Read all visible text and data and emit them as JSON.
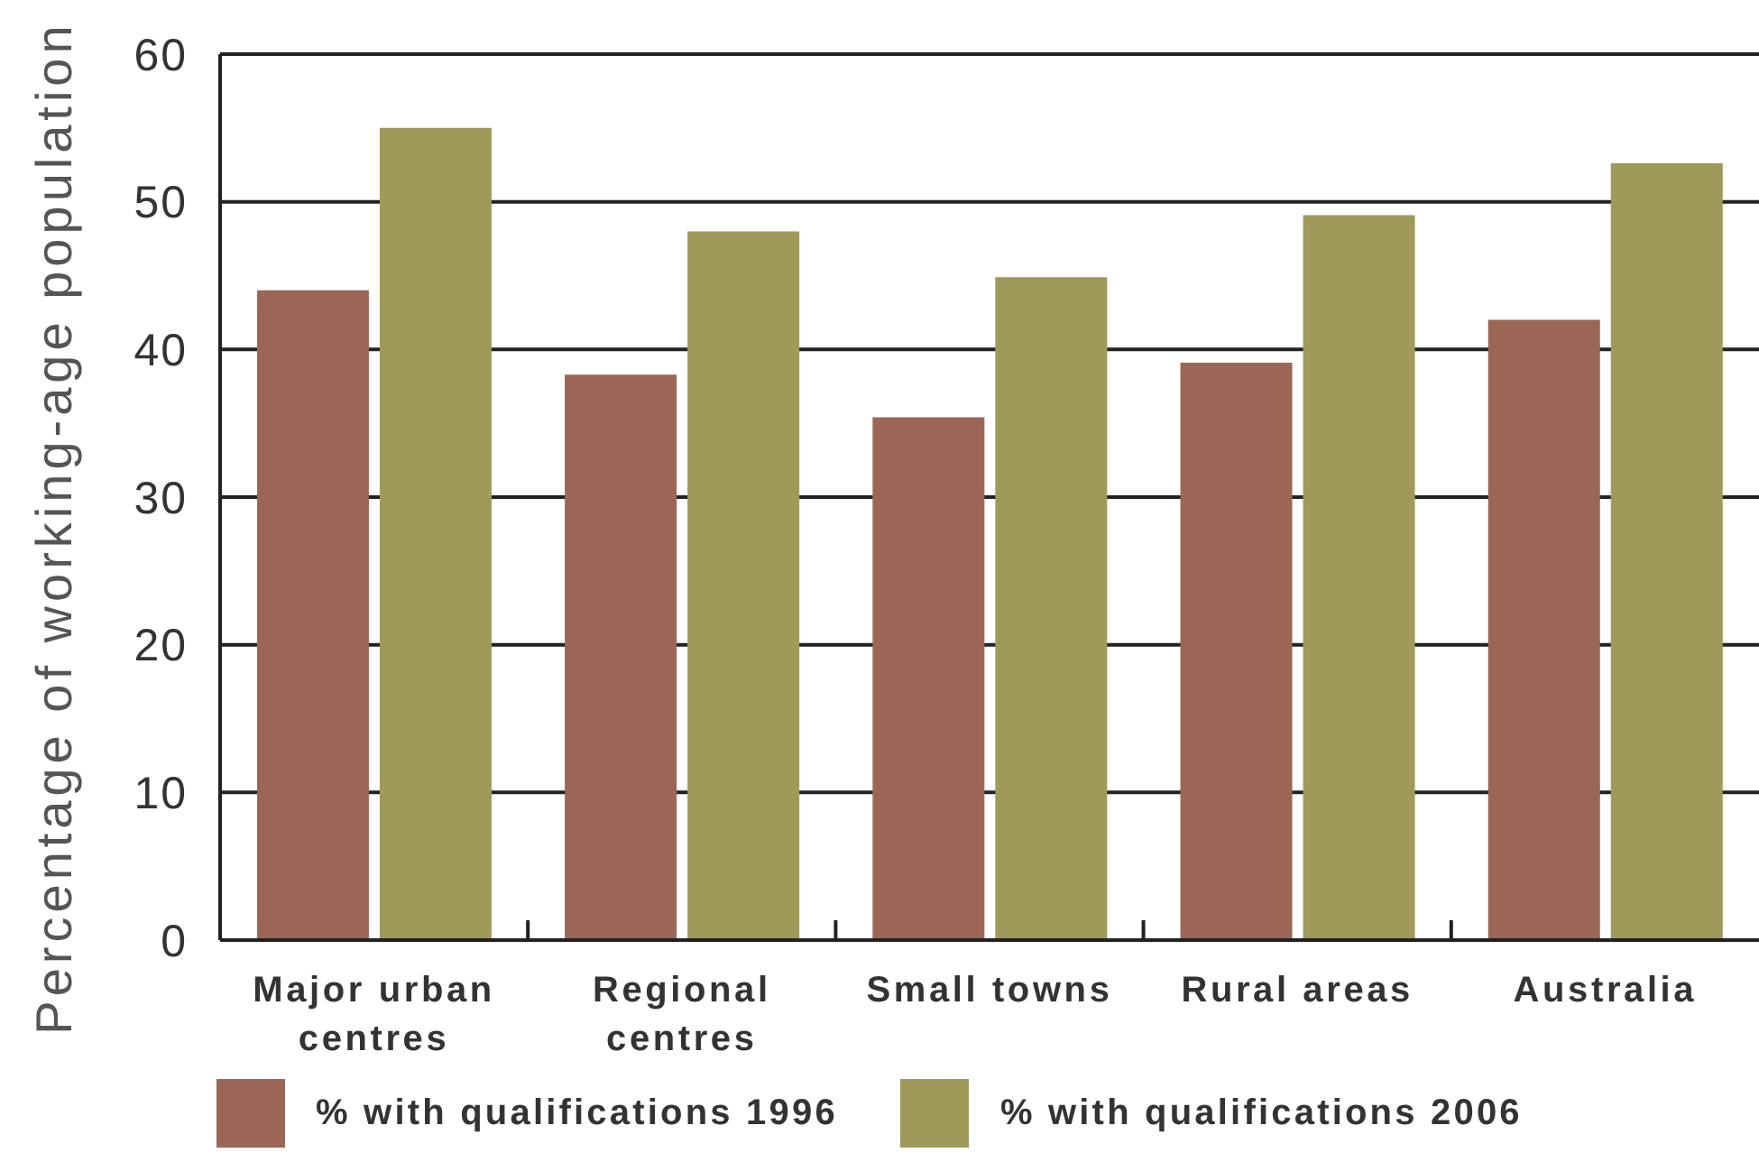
{
  "chart_data": {
    "type": "bar",
    "ylabel": "Percentage of working-age population",
    "categories": [
      "Major urban centres",
      "Regional centres",
      "Small towns",
      "Rural areas",
      "Australia"
    ],
    "series": [
      {
        "name": "% with qualifications 1996",
        "color": "#9b6656",
        "values": [
          44,
          38.3,
          35.4,
          39.1,
          42
        ]
      },
      {
        "name": "% with qualifications 2006",
        "color": "#9f9a5a",
        "values": [
          55,
          48,
          44.9,
          49.1,
          52.6
        ]
      }
    ],
    "ylim": [
      0,
      60
    ],
    "yticks": [
      0,
      10,
      20,
      30,
      40,
      50,
      60
    ],
    "grid": "y",
    "legend": "bottom"
  }
}
